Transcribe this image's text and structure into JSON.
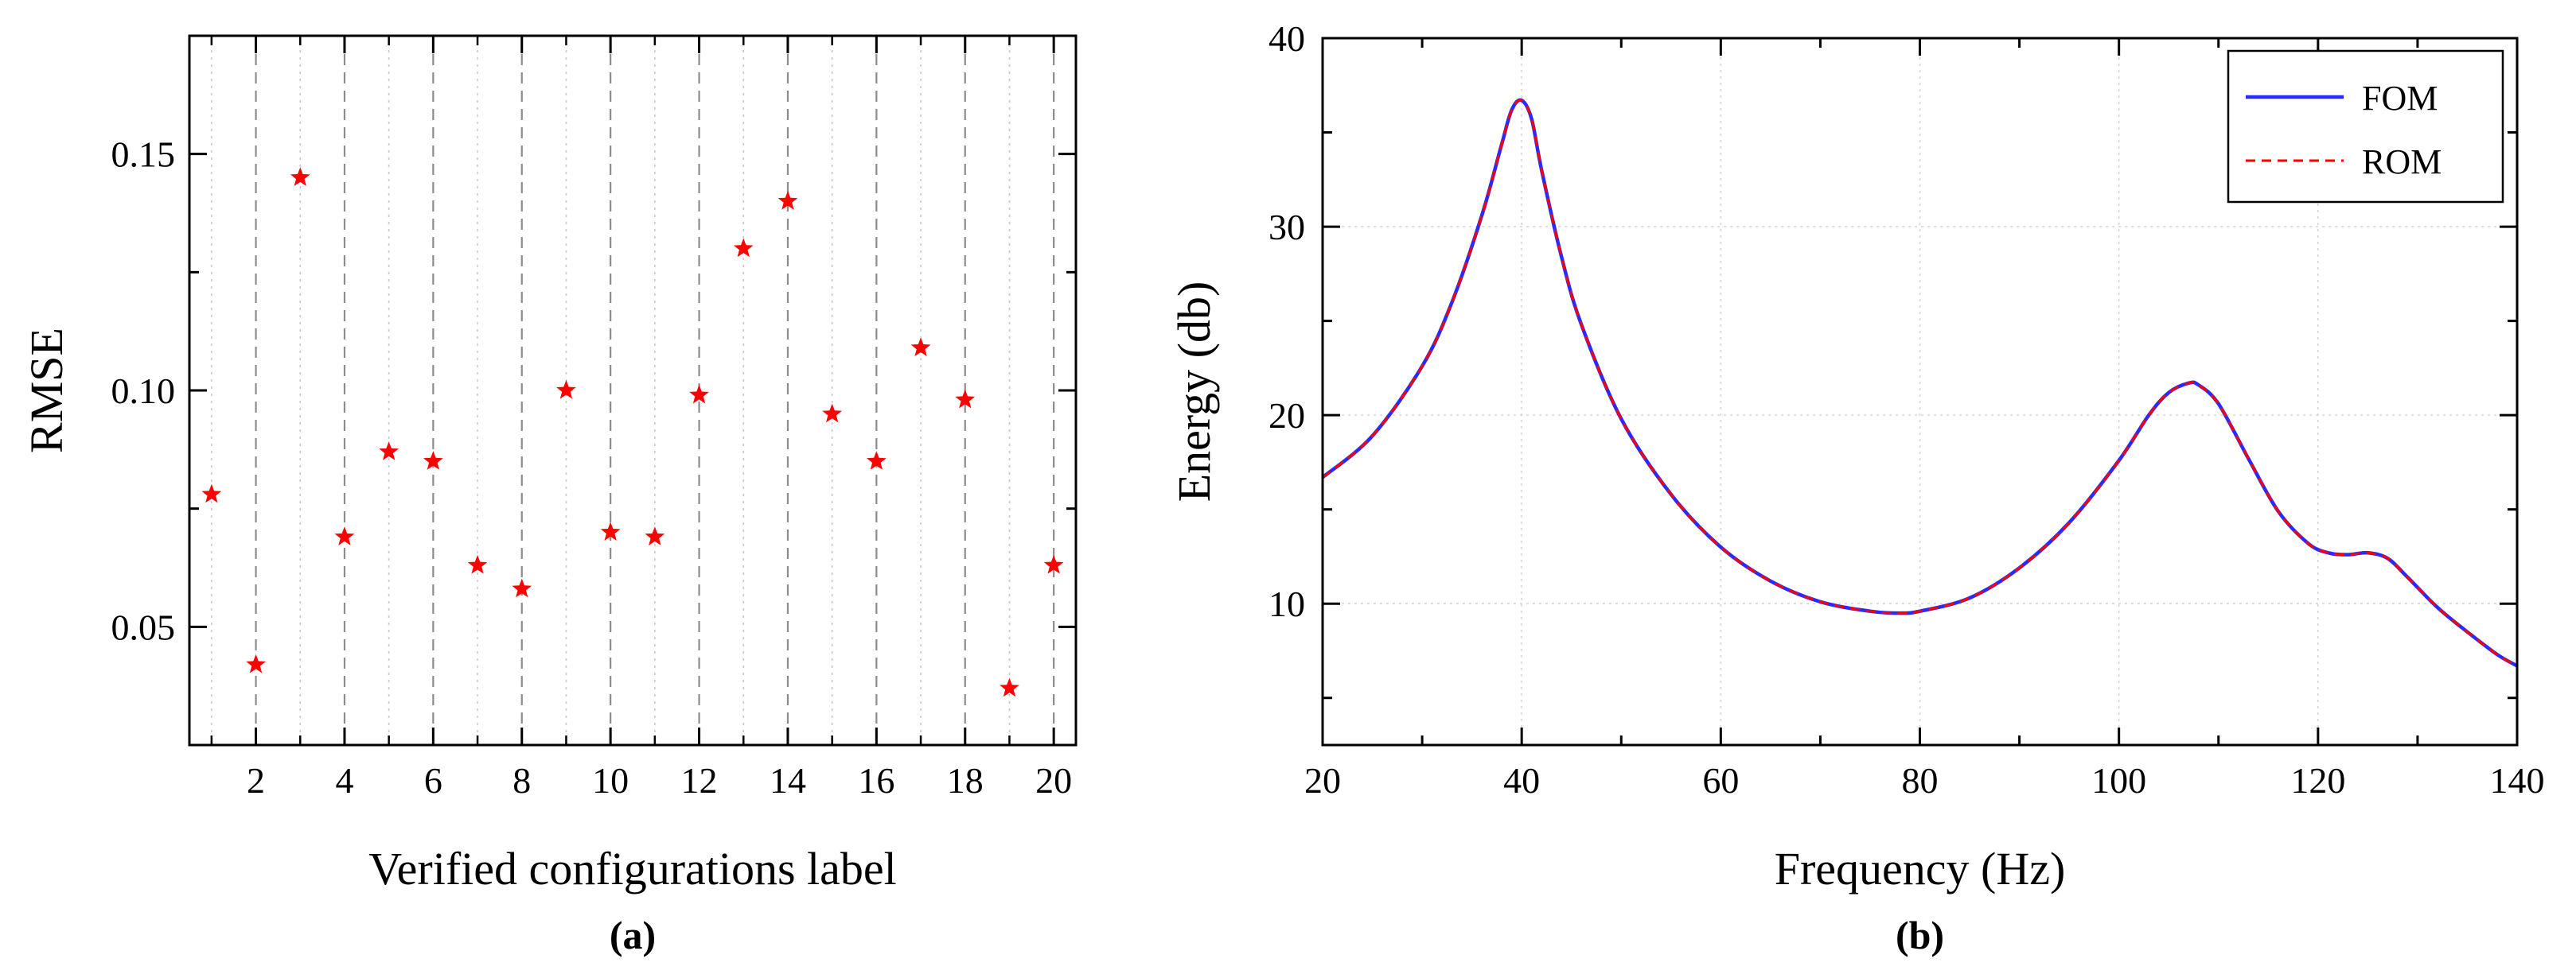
{
  "chart_data": [
    {
      "type": "scatter",
      "panel_label": "(a)",
      "xlabel": "Verified configurations label",
      "ylabel": "RMSE",
      "xlim": [
        0.5,
        20.5
      ],
      "ylim": [
        0.025,
        0.175
      ],
      "xticks": [
        2,
        4,
        6,
        8,
        10,
        12,
        14,
        16,
        18,
        20
      ],
      "xtick_labels": [
        "2",
        "4",
        "6",
        "8",
        "10",
        "12",
        "14",
        "16",
        "18",
        "20"
      ],
      "yticks": [
        0.05,
        0.1,
        0.15
      ],
      "ytick_labels": [
        "0.05",
        "0.10",
        "0.15"
      ],
      "grid": "vertical",
      "marker": "star",
      "color": "#ff0000",
      "x": [
        1,
        2,
        3,
        4,
        5,
        6,
        7,
        8,
        9,
        10,
        11,
        12,
        13,
        14,
        15,
        16,
        17,
        18,
        19,
        20
      ],
      "y": [
        0.078,
        0.042,
        0.145,
        0.069,
        0.087,
        0.085,
        0.063,
        0.058,
        0.1,
        0.07,
        0.069,
        0.099,
        0.13,
        0.14,
        0.095,
        0.085,
        0.109,
        0.098,
        0.037,
        0.063
      ]
    },
    {
      "type": "line",
      "panel_label": "(b)",
      "xlabel": "Frequency (Hz)",
      "ylabel": "Energy (db)",
      "xlim": [
        20,
        140
      ],
      "ylim": [
        2.5,
        40
      ],
      "xticks": [
        20,
        40,
        60,
        80,
        100,
        120,
        140
      ],
      "xtick_labels": [
        "20",
        "40",
        "60",
        "80",
        "100",
        "120",
        "140"
      ],
      "yticks": [
        10,
        20,
        30,
        40
      ],
      "ytick_labels": [
        "10",
        "20",
        "30",
        "40"
      ],
      "grid": "both",
      "legend_position": "top-right",
      "x": [
        20,
        25,
        30,
        33,
        36,
        38,
        39,
        40,
        41,
        42,
        44,
        46,
        50,
        55,
        60,
        65,
        70,
        75,
        78,
        80,
        85,
        90,
        95,
        100,
        103,
        105,
        107,
        108,
        110,
        113,
        116,
        119,
        121,
        123,
        125,
        127,
        129,
        132,
        135,
        138,
        140
      ],
      "series": [
        {
          "name": "FOM",
          "color": "#2a2aff",
          "style": "solid",
          "values": [
            16.7,
            18.9,
            22.6,
            26.0,
            30.6,
            34.4,
            36.2,
            36.7,
            35.7,
            33.0,
            28.4,
            24.8,
            19.8,
            15.8,
            13.0,
            11.2,
            10.1,
            9.6,
            9.5,
            9.6,
            10.3,
            11.9,
            14.3,
            17.6,
            20.0,
            21.2,
            21.7,
            21.6,
            20.6,
            17.7,
            14.9,
            13.2,
            12.7,
            12.6,
            12.7,
            12.4,
            11.4,
            9.8,
            8.5,
            7.3,
            6.7
          ]
        },
        {
          "name": "ROM",
          "color": "#ff0000",
          "style": "dashed",
          "values": [
            16.7,
            18.9,
            22.6,
            26.0,
            30.6,
            34.4,
            36.2,
            36.7,
            35.7,
            33.0,
            28.4,
            24.8,
            19.8,
            15.8,
            13.0,
            11.2,
            10.1,
            9.6,
            9.5,
            9.6,
            10.3,
            11.9,
            14.3,
            17.6,
            20.0,
            21.2,
            21.7,
            21.6,
            20.6,
            17.7,
            14.9,
            13.2,
            12.7,
            12.6,
            12.7,
            12.4,
            11.4,
            9.8,
            8.5,
            7.3,
            6.7
          ]
        }
      ]
    }
  ]
}
